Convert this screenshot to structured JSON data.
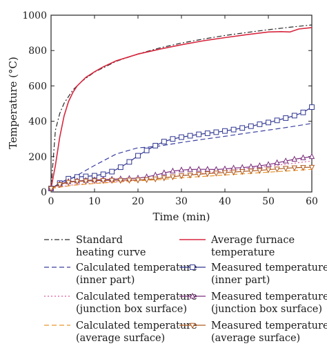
{
  "chart_data": {
    "type": "line",
    "xlabel": "Time (min)",
    "ylabel": "Temperature (°C)",
    "xlim": [
      0,
      60
    ],
    "ylim": [
      0,
      1000
    ],
    "xticks": [
      0,
      10,
      20,
      30,
      40,
      50,
      60
    ],
    "yticks": [
      0,
      200,
      400,
      600,
      800,
      1000
    ],
    "x_tick_labels": [
      "0",
      "10",
      "20",
      "30",
      "40",
      "50",
      "60"
    ],
    "y_tick_labels": [
      "0",
      "200",
      "400",
      "600",
      "800",
      "1000"
    ],
    "grid": false,
    "legend_position": "bottom",
    "series": [
      {
        "name_lines": [
          "Standard",
          "heating curve"
        ],
        "color": "#2a2a2a",
        "dash": "dashdot",
        "marker": "none",
        "x": [
          0,
          1,
          2,
          3,
          5,
          7,
          10,
          15,
          20,
          25,
          30,
          35,
          40,
          45,
          50,
          55,
          60
        ],
        "y": [
          20,
          349,
          444,
          502,
          576,
          625,
          678,
          739,
          781,
          815,
          842,
          865,
          885,
          902,
          918,
          932,
          945
        ]
      },
      {
        "name_lines": [
          "Average furnace",
          "temperature"
        ],
        "color": "#d7263d",
        "dash": "solid",
        "marker": "none",
        "x": [
          0,
          1,
          2,
          3,
          4,
          5,
          6,
          8,
          10,
          12,
          15,
          20,
          25,
          30,
          35,
          40,
          45,
          50,
          53,
          55,
          57,
          60
        ],
        "y": [
          20,
          150,
          310,
          430,
          510,
          562,
          600,
          648,
          680,
          708,
          742,
          780,
          808,
          833,
          855,
          873,
          890,
          905,
          907,
          905,
          922,
          930
        ]
      },
      {
        "name_lines": [
          "Calculated temperature",
          "(inner part)"
        ],
        "color": "#3a3fa0",
        "dash": "dashed",
        "marker": "none",
        "x": [
          0,
          5,
          10,
          15,
          20,
          22,
          25,
          30,
          35,
          40,
          45,
          50,
          55,
          60
        ],
        "y": [
          20,
          80,
          150,
          215,
          250,
          253,
          260,
          280,
          298,
          315,
          333,
          350,
          368,
          388
        ]
      },
      {
        "name_lines": [
          "Measured temperature",
          "(inner part)"
        ],
        "color": "#2e3590",
        "dash": "solid",
        "marker": "square",
        "x": [
          0,
          2,
          4,
          6,
          8,
          10,
          12,
          14,
          16,
          18,
          20,
          22,
          24,
          26,
          28,
          30,
          32,
          34,
          36,
          38,
          40,
          42,
          44,
          46,
          48,
          50,
          52,
          54,
          56,
          58,
          60
        ],
        "y": [
          20,
          50,
          75,
          85,
          88,
          92,
          100,
          115,
          140,
          170,
          205,
          235,
          262,
          285,
          300,
          310,
          318,
          326,
          332,
          338,
          345,
          353,
          362,
          372,
          383,
          393,
          405,
          418,
          432,
          450,
          480
        ]
      },
      {
        "name_lines": [
          "Calculated temperature",
          "(junction box surface)"
        ],
        "color": "#e0569a",
        "dash": "dotted",
        "marker": "none",
        "x": [
          0,
          5,
          10,
          15,
          20,
          25,
          30,
          35,
          40,
          45,
          50,
          55,
          60
        ],
        "y": [
          20,
          40,
          50,
          58,
          66,
          78,
          92,
          105,
          118,
          132,
          145,
          160,
          175
        ]
      },
      {
        "name_lines": [
          "Measured temperature",
          "(junction box surface)"
        ],
        "color": "#7a2a7a",
        "dash": "solid",
        "marker": "triangle",
        "x": [
          0,
          2,
          4,
          6,
          8,
          10,
          12,
          14,
          16,
          18,
          20,
          22,
          24,
          26,
          28,
          30,
          32,
          34,
          36,
          38,
          40,
          42,
          44,
          46,
          48,
          50,
          52,
          54,
          56,
          58,
          60
        ],
        "y": [
          20,
          45,
          58,
          62,
          65,
          68,
          70,
          72,
          74,
          76,
          78,
          85,
          95,
          108,
          118,
          124,
          127,
          128,
          128,
          127,
          130,
          135,
          138,
          142,
          148,
          155,
          165,
          175,
          185,
          193,
          200
        ]
      },
      {
        "name_lines": [
          "Calculated temperature",
          "(average surface)"
        ],
        "color": "#e8942a",
        "dash": "dashed",
        "marker": "none",
        "x": [
          0,
          5,
          10,
          15,
          20,
          25,
          30,
          35,
          40,
          45,
          50,
          55,
          60
        ],
        "y": [
          20,
          38,
          48,
          56,
          63,
          70,
          80,
          88,
          96,
          104,
          112,
          120,
          128
        ]
      },
      {
        "name_lines": [
          "Measured temperature",
          "(average surface)"
        ],
        "color": "#b05a1e",
        "dash": "solid",
        "marker": "inv-triangle",
        "x": [
          0,
          2,
          4,
          6,
          8,
          10,
          12,
          14,
          16,
          18,
          20,
          22,
          24,
          26,
          28,
          30,
          32,
          34,
          36,
          38,
          40,
          42,
          44,
          46,
          48,
          50,
          52,
          54,
          56,
          58,
          60
        ],
        "y": [
          20,
          42,
          55,
          60,
          62,
          64,
          65,
          66,
          66,
          67,
          68,
          70,
          74,
          80,
          86,
          92,
          96,
          100,
          104,
          107,
          110,
          113,
          116,
          119,
          122,
          126,
          130,
          134,
          137,
          139,
          140
        ]
      }
    ]
  }
}
